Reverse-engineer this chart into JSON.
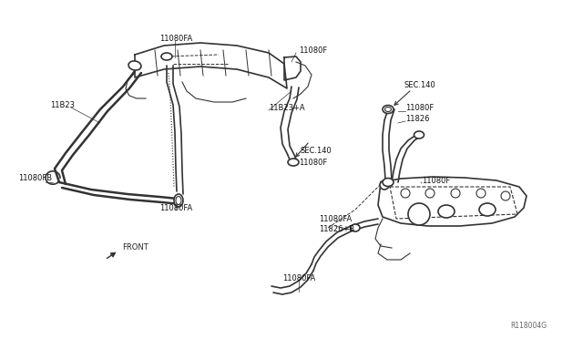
{
  "bg_color": "#ffffff",
  "line_color": "#333333",
  "diagram_id": "R118004G",
  "fig_w": 6.4,
  "fig_h": 3.72,
  "dpi": 100,
  "xlim": [
    0,
    640
  ],
  "ylim": [
    0,
    372
  ]
}
